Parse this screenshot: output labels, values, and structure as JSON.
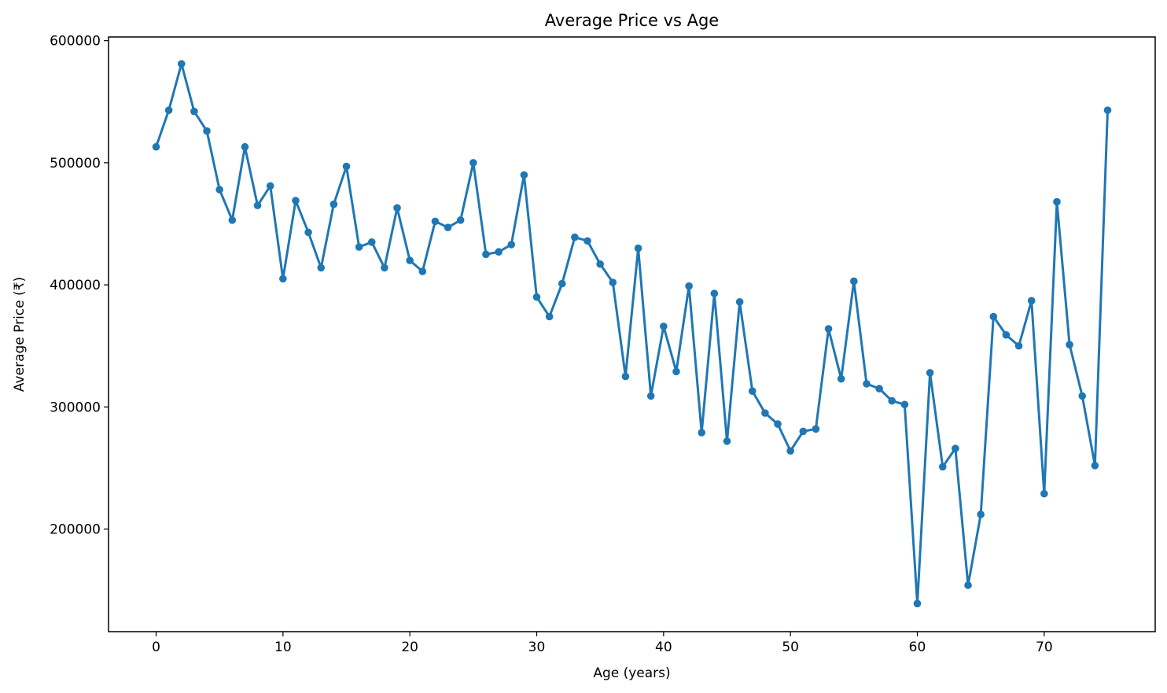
{
  "chart_data": {
    "type": "line",
    "title": "Average Price vs Age",
    "xlabel": "Age (years)",
    "ylabel": "Average Price (₹)",
    "xlim": [
      -3.75,
      78.75
    ],
    "ylim": [
      116000,
      603000
    ],
    "xticks": [
      0,
      10,
      20,
      30,
      40,
      50,
      60,
      70
    ],
    "yticks": [
      200000,
      300000,
      400000,
      500000,
      600000
    ],
    "grid": false,
    "series": [
      {
        "color": "#1f77b4",
        "marker": "circle",
        "x": [
          0,
          1,
          2,
          3,
          4,
          5,
          6,
          7,
          8,
          9,
          10,
          11,
          12,
          13,
          14,
          15,
          16,
          17,
          18,
          19,
          20,
          21,
          22,
          23,
          24,
          25,
          26,
          27,
          28,
          29,
          30,
          31,
          32,
          33,
          34,
          35,
          36,
          37,
          38,
          39,
          40,
          41,
          42,
          43,
          44,
          45,
          46,
          47,
          48,
          49,
          50,
          51,
          52,
          53,
          54,
          55,
          56,
          57,
          58,
          59,
          60,
          61,
          62,
          63,
          64,
          65,
          66,
          67,
          68,
          69,
          70,
          71,
          72,
          73,
          74,
          75
        ],
        "y": [
          513000,
          543000,
          581000,
          542000,
          526000,
          478000,
          453000,
          513000,
          465000,
          481000,
          405000,
          469000,
          443000,
          414000,
          466000,
          497000,
          431000,
          435000,
          414000,
          463000,
          420000,
          411000,
          452000,
          447000,
          453000,
          500000,
          425000,
          427000,
          433000,
          490000,
          390000,
          374000,
          401000,
          439000,
          436000,
          417000,
          402000,
          325000,
          430000,
          309000,
          366000,
          329000,
          399000,
          279000,
          393000,
          272000,
          386000,
          313000,
          295000,
          286000,
          264000,
          280000,
          282000,
          364000,
          323000,
          403000,
          319000,
          315000,
          305000,
          302000,
          139000,
          328000,
          251000,
          266000,
          154000,
          212000,
          374000,
          359000,
          350000,
          387000,
          229000,
          468000,
          351000,
          309000,
          252000,
          543000
        ]
      }
    ]
  }
}
